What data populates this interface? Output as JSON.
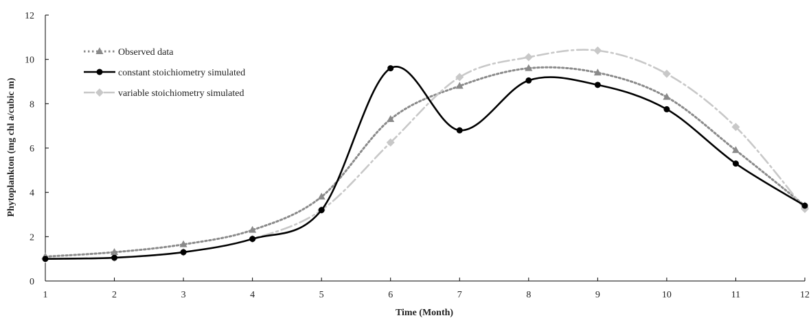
{
  "chart_data": {
    "type": "line",
    "title": "",
    "xlabel": "Time (Month)",
    "ylabel": "Phytoplankton (mg chl a/cubic m)",
    "x": [
      1,
      2,
      3,
      4,
      5,
      6,
      7,
      8,
      9,
      10,
      11,
      12
    ],
    "xlim": [
      1,
      12
    ],
    "ylim": [
      0,
      12
    ],
    "x_ticks": [
      "1",
      "2",
      "3",
      "4",
      "5",
      "6",
      "7",
      "8",
      "9",
      "10",
      "11",
      "12"
    ],
    "y_ticks": [
      "0",
      "2",
      "4",
      "6",
      "8",
      "10",
      "12"
    ],
    "grid": false,
    "legend_position": "top-left",
    "series": [
      {
        "name": "Observed data",
        "values": [
          1.1,
          1.3,
          1.65,
          2.3,
          3.8,
          7.3,
          8.8,
          9.6,
          9.4,
          8.3,
          5.9,
          3.4
        ],
        "color": "#8a8a8a",
        "line_style": "dotted",
        "marker": "triangle"
      },
      {
        "name": "constant stoichiometry simulated",
        "values": [
          1.0,
          1.05,
          1.3,
          1.9,
          3.2,
          9.6,
          6.8,
          9.05,
          8.85,
          7.75,
          5.3,
          3.4
        ],
        "color": "#000000",
        "line_style": "solid",
        "marker": "circle"
      },
      {
        "name": "variable stoichiometry simulated",
        "values": [
          1.0,
          1.05,
          1.3,
          1.9,
          3.2,
          6.25,
          9.2,
          10.1,
          10.4,
          9.35,
          6.95,
          3.25
        ],
        "color": "#c8c8c8",
        "line_style": "dashdot",
        "marker": "diamond"
      }
    ]
  }
}
